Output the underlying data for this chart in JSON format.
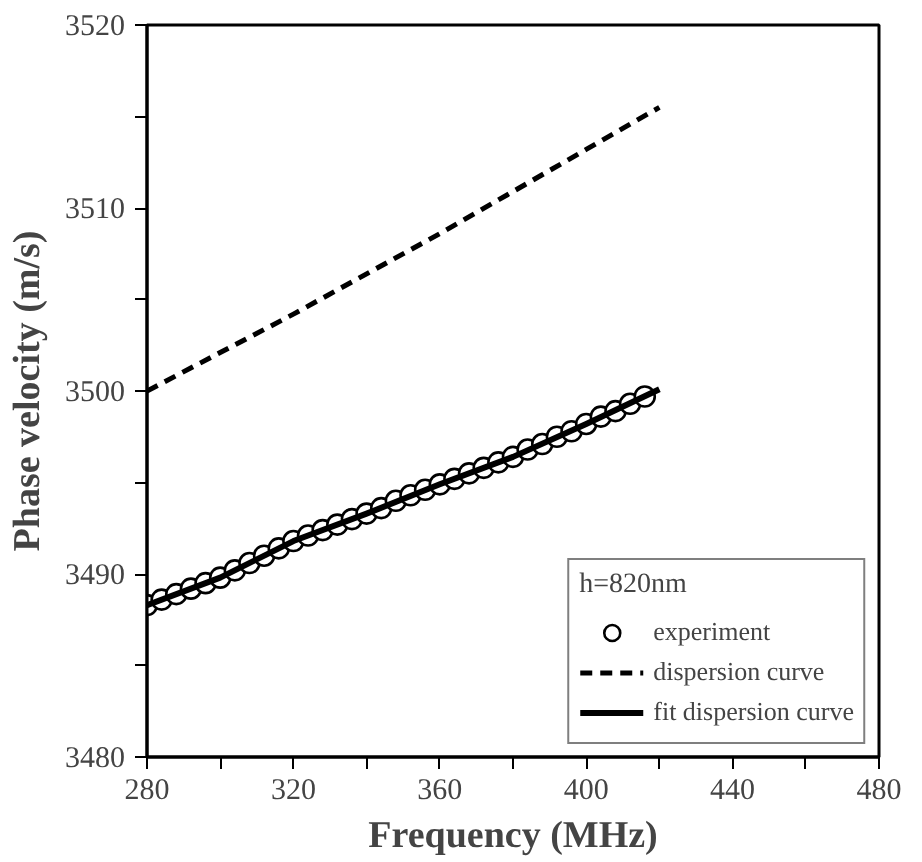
{
  "chart_data": {
    "type": "line",
    "xlabel": "Frequency (MHz)",
    "ylabel": "Phase velocity (m/s)",
    "legend_title": "h=820nm",
    "xlim": [
      280,
      480
    ],
    "ylim": [
      3480,
      3520
    ],
    "xticks": [
      280,
      {
        "value": 300,
        "label": null
      },
      320,
      {
        "value": 340,
        "label": null
      },
      360,
      {
        "value": 380,
        "label": null
      },
      400,
      {
        "value": 420,
        "label": null
      },
      440,
      {
        "value": 460,
        "label": null
      },
      480
    ],
    "yticks": [
      3480,
      {
        "value": 3485,
        "label": null
      },
      3490,
      {
        "value": 3495,
        "label": null
      },
      3500,
      {
        "value": 3505,
        "label": null
      },
      3510,
      {
        "value": 3515,
        "label": null
      },
      3520
    ],
    "grid": false,
    "legend": "bottom right",
    "series": [
      {
        "name": "experiment",
        "type": "scatter",
        "marker": "circle",
        "color": "#000000",
        "x": [
          280,
          284,
          288,
          292,
          296,
          300,
          304,
          308,
          312,
          316,
          320,
          324,
          328,
          332,
          336,
          340,
          344,
          348,
          352,
          356,
          360,
          364,
          368,
          372,
          376,
          380,
          384,
          388,
          392,
          396,
          400,
          404,
          408,
          412,
          416
        ],
        "values": [
          3488.3,
          3488.6,
          3488.9,
          3489.2,
          3489.5,
          3489.8,
          3490.2,
          3490.6,
          3491.0,
          3491.4,
          3491.8,
          3492.1,
          3492.4,
          3492.7,
          3493.0,
          3493.3,
          3493.6,
          3494.0,
          3494.3,
          3494.6,
          3494.9,
          3495.2,
          3495.5,
          3495.8,
          3496.1,
          3496.4,
          3496.8,
          3497.1,
          3497.5,
          3497.8,
          3498.2,
          3498.6,
          3498.9,
          3499.3,
          3499.7
        ]
      },
      {
        "name": "dispersion curve",
        "line_style": "dashed",
        "color": "#000000",
        "x": [
          280,
          300,
          320,
          340,
          360,
          380,
          400,
          420
        ],
        "values": [
          3500.0,
          3502.1,
          3504.2,
          3506.4,
          3508.6,
          3510.9,
          3513.2,
          3515.5
        ]
      },
      {
        "name": "fit dispersion curve",
        "line_style": "solid",
        "color": "#000000",
        "x": [
          280,
          300,
          320,
          340,
          360,
          380,
          400,
          420
        ],
        "values": [
          3488.3,
          3489.8,
          3491.8,
          3493.3,
          3494.9,
          3496.4,
          3498.2,
          3500.1
        ]
      }
    ]
  }
}
